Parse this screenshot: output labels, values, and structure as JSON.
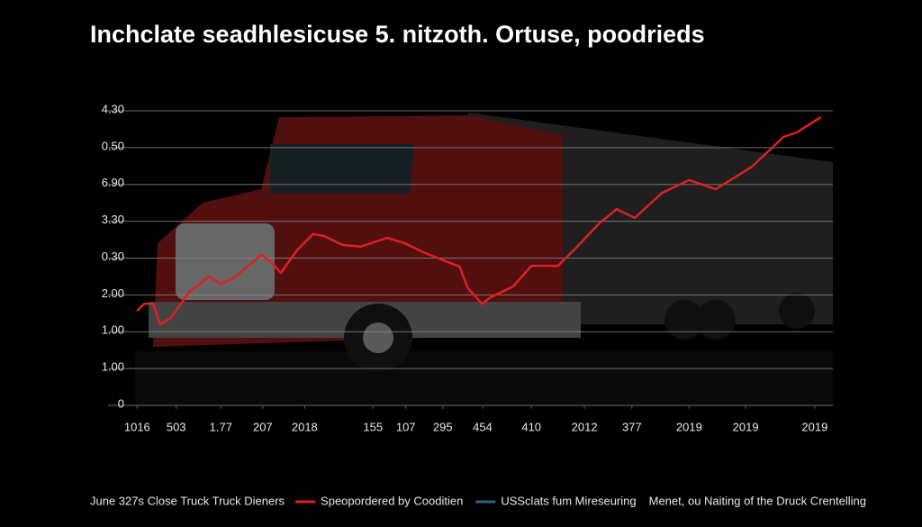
{
  "chart_data": {
    "type": "line",
    "title": "Inchclate seadhlesicuse 5. nitzoth. Ortuse, poodrieds",
    "xlim": [
      0,
      100
    ],
    "ylim": [
      0,
      8
    ],
    "yticks": [
      0,
      {
        "value": 1,
        "label": "1.00"
      },
      {
        "value": 2,
        "label": "1.00"
      },
      {
        "value": 3,
        "label": "2.00"
      },
      {
        "value": 4,
        "label": "0.30"
      },
      {
        "value": 5,
        "label": "3.30"
      },
      {
        "value": 6,
        "label": "6.90"
      },
      {
        "value": 7,
        "label": "0.50"
      },
      {
        "value": 8,
        "label": "4.30"
      }
    ],
    "xticks": [
      {
        "value": 0.3,
        "label": "1016"
      },
      {
        "value": 5.9,
        "label": "503"
      },
      {
        "value": 12.3,
        "label": "1.77"
      },
      {
        "value": 18.3,
        "label": "207"
      },
      {
        "value": 24.3,
        "label": "2018"
      },
      {
        "value": 34.1,
        "label": "155"
      },
      {
        "value": 38.8,
        "label": "107"
      },
      {
        "value": 44.1,
        "label": "295"
      },
      {
        "value": 49.8,
        "label": "454"
      },
      {
        "value": 56.8,
        "label": "410"
      },
      {
        "value": 64.4,
        "label": "2012"
      },
      {
        "value": 71.2,
        "label": "377"
      },
      {
        "value": 79.4,
        "label": "2019"
      },
      {
        "value": 87.5,
        "label": "2019"
      },
      {
        "value": 97.4,
        "label": "2019"
      }
    ],
    "grid": true,
    "legend_title": "June 327s Close Truck Truck Dieners",
    "series": [
      {
        "name": "Speopordered by Cooditien",
        "color": "#e0201e",
        "x": [
          0.3,
          1.3,
          2.6,
          3.6,
          5.2,
          7.7,
          10.6,
          12.3,
          14.2,
          18.1,
          19.4,
          20.9,
          23.2,
          25.5,
          27.1,
          29.7,
          32.3,
          36.1,
          38.7,
          41.3,
          43.9,
          46.5,
          47.7,
          49.7,
          51.0,
          54.2,
          56.8,
          60.6,
          63.2,
          66.5,
          69.0,
          71.6,
          75.5,
          79.4,
          83.2,
          88.4,
          92.9,
          94.8,
          98.3
        ],
        "values": [
          2.57,
          2.76,
          2.76,
          2.2,
          2.39,
          3.06,
          3.5,
          3.3,
          3.47,
          4.09,
          3.91,
          3.6,
          4.21,
          4.65,
          4.6,
          4.36,
          4.31,
          4.55,
          4.4,
          4.16,
          3.96,
          3.77,
          3.18,
          2.76,
          2.94,
          3.23,
          3.79,
          3.79,
          4.28,
          4.94,
          5.33,
          5.09,
          5.77,
          6.12,
          5.87,
          6.48,
          7.29,
          7.41,
          7.83
        ]
      }
    ],
    "extra_legend": [
      {
        "label": "USSclats fum Mireseuring",
        "color": "#2f5f82"
      },
      {
        "label": "Menet, ou Naiting of the Druck Crentelling"
      }
    ]
  }
}
